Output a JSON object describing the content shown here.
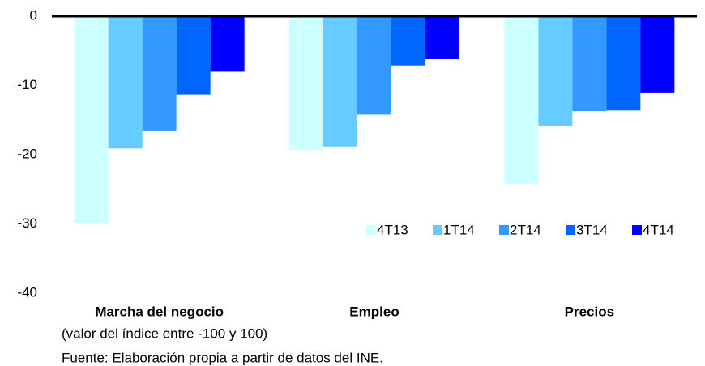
{
  "chart_data": {
    "type": "bar",
    "categories": [
      "Marcha del negocio",
      "Empleo",
      "Precios"
    ],
    "series": [
      {
        "name": "4T13",
        "color": "#ccffff",
        "values": [
          -30,
          -19.3,
          -24.2
        ]
      },
      {
        "name": "1T14",
        "color": "#66ccff",
        "values": [
          -19.1,
          -18.8,
          -15.9
        ]
      },
      {
        "name": "2T14",
        "color": "#3399ff",
        "values": [
          -16.6,
          -14.2,
          -13.7
        ]
      },
      {
        "name": "3T14",
        "color": "#0066ff",
        "values": [
          -11.3,
          -7.1,
          -13.6
        ]
      },
      {
        "name": "4T14",
        "color": "#0000ff",
        "values": [
          -8,
          -6.2,
          -11.1
        ]
      }
    ],
    "ylim": [
      -40,
      0
    ],
    "yticks": [
      0,
      -10,
      -20,
      -30,
      -40
    ],
    "grid": false,
    "note": "(valor del índice entre -100 y 100)",
    "source": "Fuente: Elaboración propia a partir de datos del INE."
  }
}
